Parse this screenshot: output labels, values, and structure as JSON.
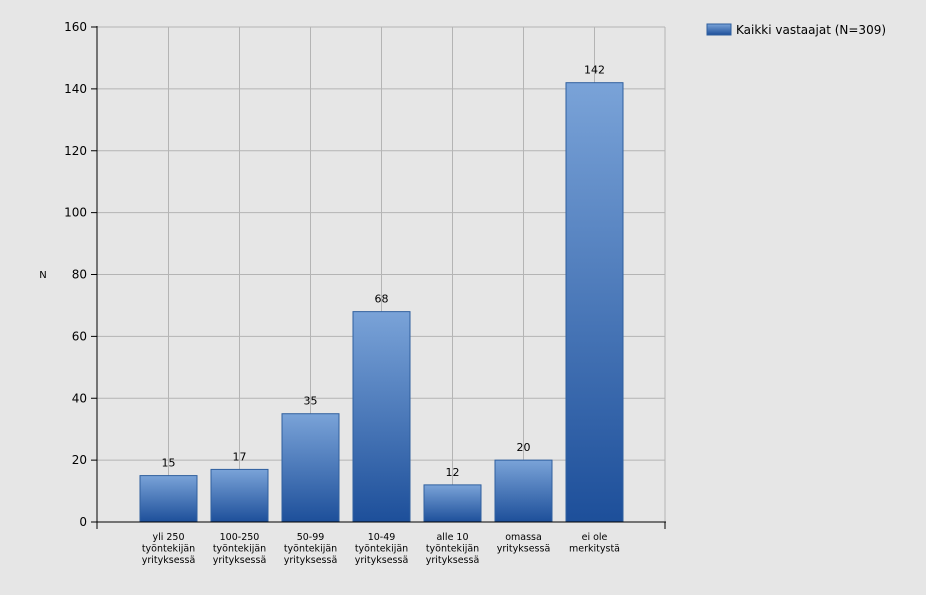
{
  "chart_data": {
    "type": "bar",
    "categories": [
      [
        "yli 250",
        "työntekijän",
        "yrityksessä"
      ],
      [
        "100-250",
        "työntekijän",
        "yrityksessä"
      ],
      [
        "50-99",
        "työntekijän",
        "yrityksessä"
      ],
      [
        "10-49",
        "työntekijän",
        "yrityksessä"
      ],
      [
        "alle 10",
        "työntekijän",
        "yrityksessä"
      ],
      [
        "omassa",
        "yrityksessä"
      ],
      [
        "ei ole",
        "merkitystä"
      ]
    ],
    "series": [
      {
        "name": "Kaikki vastaajat (N=309)",
        "values": [
          15,
          17,
          35,
          68,
          12,
          20,
          142
        ]
      }
    ],
    "title": "",
    "xlabel": "",
    "ylabel": "N",
    "ylim": [
      0,
      160
    ],
    "yticks": [
      0,
      20,
      40,
      60,
      80,
      100,
      120,
      140,
      160
    ],
    "grid": true,
    "legend_position": "top-right",
    "colors": {
      "bar_light": "#7aa3d8",
      "bar_dark": "#1d4f9a",
      "bar_edge": "#2f5f9e",
      "plot_bg": "#e6e6e6",
      "grid": "#b4b4b4",
      "axis": "#000000"
    }
  }
}
